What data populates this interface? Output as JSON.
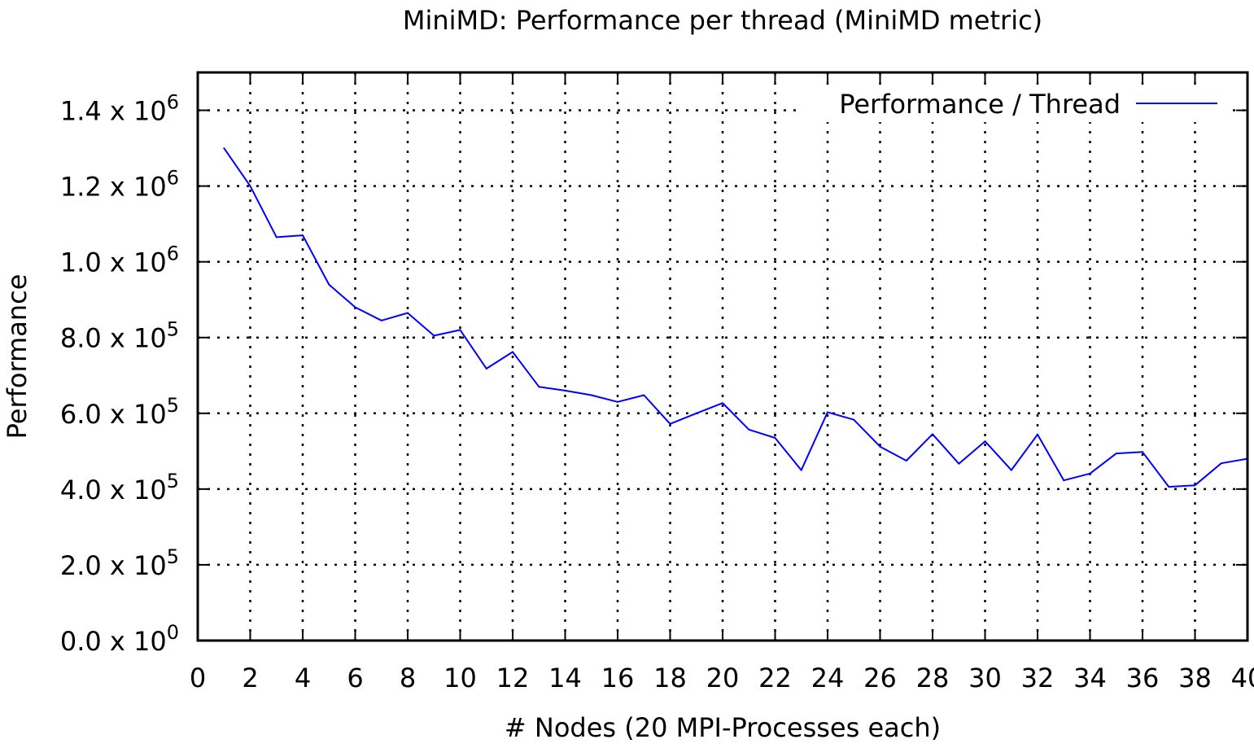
{
  "chart_data": {
    "type": "line",
    "title": "MiniMD: Performance per thread  (MiniMD metric)",
    "xlabel": "# Nodes (20 MPI-Processes each)",
    "ylabel": "Performance",
    "xlim": [
      0,
      40
    ],
    "ylim": [
      0,
      1500000
    ],
    "grid": true,
    "legend_position": "top-right",
    "x_ticks": [
      0,
      2,
      4,
      6,
      8,
      10,
      12,
      14,
      16,
      18,
      20,
      22,
      24,
      26,
      28,
      30,
      32,
      34,
      36,
      38,
      40
    ],
    "x_tick_labels": [
      "0",
      "2",
      "4",
      "6",
      "8",
      "10",
      "12",
      "14",
      "16",
      "18",
      "20",
      "22",
      "24",
      "26",
      "28",
      "30",
      "32",
      "34",
      "36",
      "38",
      "40"
    ],
    "y_ticks": [
      {
        "value": 0,
        "mantissa": "0.0 x 10",
        "exponent": "0"
      },
      {
        "value": 200000,
        "mantissa": "2.0 x 10",
        "exponent": "5"
      },
      {
        "value": 400000,
        "mantissa": "4.0 x 10",
        "exponent": "5"
      },
      {
        "value": 600000,
        "mantissa": "6.0 x 10",
        "exponent": "5"
      },
      {
        "value": 800000,
        "mantissa": "8.0 x 10",
        "exponent": "5"
      },
      {
        "value": 1000000,
        "mantissa": "1.0 x 10",
        "exponent": "6"
      },
      {
        "value": 1200000,
        "mantissa": "1.2 x 10",
        "exponent": "6"
      },
      {
        "value": 1400000,
        "mantissa": "1.4 x 10",
        "exponent": "6"
      }
    ],
    "series": [
      {
        "name": "Performance / Thread",
        "color": "#0000ff",
        "x": [
          1,
          2,
          3,
          4,
          5,
          6,
          7,
          8,
          9,
          10,
          11,
          12,
          13,
          14,
          15,
          16,
          17,
          18,
          19,
          20,
          21,
          22,
          23,
          24,
          25,
          26,
          27,
          28,
          29,
          30,
          31,
          32,
          33,
          34,
          35,
          36,
          37,
          38,
          39,
          40
        ],
        "values": [
          1300000,
          1200000,
          1065000,
          1070000,
          940000,
          880000,
          845000,
          865000,
          805000,
          820000,
          718000,
          762000,
          670000,
          660000,
          648000,
          630000,
          648000,
          572000,
          600000,
          627000,
          557000,
          535000,
          450000,
          603000,
          583000,
          512000,
          475000,
          545000,
          467000,
          526000,
          450000,
          544000,
          423000,
          441000,
          494000,
          498000,
          406000,
          410000,
          468000,
          480000
        ]
      }
    ]
  }
}
